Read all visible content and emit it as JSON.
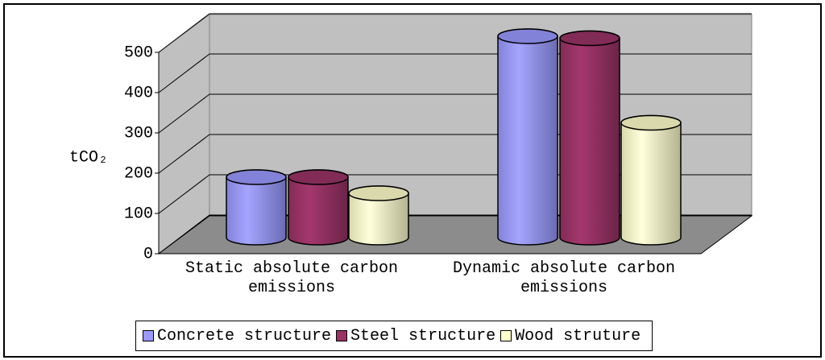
{
  "chart_data": {
    "type": "bar3d_cylinder",
    "y_label": "tCO₂",
    "categories": [
      "Static absolute carbon emissions",
      "Dynamic absolute carbon emissions"
    ],
    "series": [
      {
        "name": "Concrete structure",
        "color": "#9999ff",
        "values": [
          150,
          500
        ]
      },
      {
        "name": "Steel structure",
        "color": "#993366",
        "values": [
          150,
          495
        ]
      },
      {
        "name": "Wood struture",
        "color": "#ffffcc",
        "values": [
          110,
          285
        ]
      }
    ],
    "ylim": [
      0,
      500
    ],
    "yticks": [
      0,
      100,
      200,
      300,
      400,
      500
    ],
    "grid": true,
    "legend": "bottom"
  }
}
